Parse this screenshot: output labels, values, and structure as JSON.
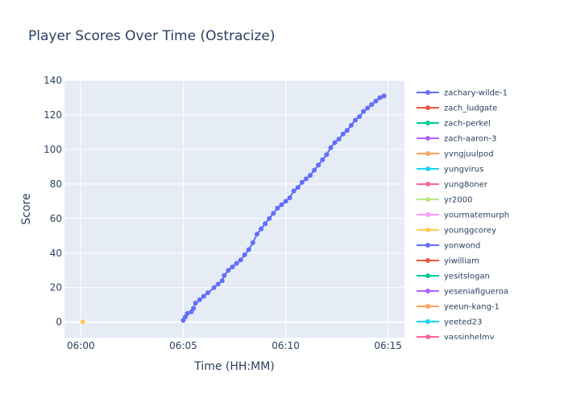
{
  "chart_data": {
    "type": "line",
    "title": "Player Scores Over Time (Ostracize)",
    "xlabel": "Time (HH:MM)",
    "ylabel": "Score",
    "x_ticks": [
      "06:00",
      "06:05",
      "06:10",
      "06:15"
    ],
    "x_tick_minutes": [
      0,
      5,
      10,
      15
    ],
    "xlim_minutes": [
      -0.8,
      15.8
    ],
    "ylim": [
      -9,
      140
    ],
    "y_ticks": [
      0,
      20,
      40,
      60,
      80,
      100,
      120,
      140
    ],
    "grid": true,
    "legend_position": "right",
    "series": [
      {
        "name": "zachary-wilde-1",
        "color": "#636efa",
        "points": [
          [
            5.0,
            1
          ],
          [
            5.1,
            3
          ],
          [
            5.2,
            5
          ],
          [
            5.4,
            6
          ],
          [
            5.5,
            8
          ],
          [
            5.6,
            11
          ],
          [
            5.8,
            13
          ],
          [
            6.0,
            15
          ],
          [
            6.2,
            17
          ],
          [
            6.5,
            20
          ],
          [
            6.7,
            22
          ],
          [
            6.9,
            24
          ],
          [
            7.0,
            27
          ],
          [
            7.2,
            30
          ],
          [
            7.4,
            32
          ],
          [
            7.6,
            34
          ],
          [
            7.8,
            36
          ],
          [
            8.0,
            39
          ],
          [
            8.2,
            42
          ],
          [
            8.4,
            46
          ],
          [
            8.6,
            51
          ],
          [
            8.8,
            54
          ],
          [
            9.0,
            57
          ],
          [
            9.2,
            60
          ],
          [
            9.4,
            63
          ],
          [
            9.6,
            66
          ],
          [
            9.8,
            68
          ],
          [
            10.0,
            70
          ],
          [
            10.2,
            72
          ],
          [
            10.4,
            76
          ],
          [
            10.6,
            78
          ],
          [
            10.8,
            81
          ],
          [
            11.0,
            83
          ],
          [
            11.2,
            85
          ],
          [
            11.4,
            88
          ],
          [
            11.6,
            91
          ],
          [
            11.8,
            94
          ],
          [
            12.0,
            97
          ],
          [
            12.2,
            101
          ],
          [
            12.4,
            104
          ],
          [
            12.6,
            106
          ],
          [
            12.8,
            109
          ],
          [
            13.0,
            111
          ],
          [
            13.2,
            114
          ],
          [
            13.4,
            117
          ],
          [
            13.6,
            119
          ],
          [
            13.8,
            122
          ],
          [
            14.0,
            124
          ],
          [
            14.2,
            126
          ],
          [
            14.4,
            128
          ],
          [
            14.6,
            130
          ],
          [
            14.8,
            131
          ]
        ]
      },
      {
        "name": "zach_ludgate",
        "color": "#ef553b",
        "points": []
      },
      {
        "name": "zach-perkel",
        "color": "#00cc96",
        "points": []
      },
      {
        "name": "zach-aaron-3",
        "color": "#ab63fa",
        "points": []
      },
      {
        "name": "yvngjuulpod",
        "color": "#ffa15a",
        "points": []
      },
      {
        "name": "yungvirus",
        "color": "#19d3f3",
        "points": []
      },
      {
        "name": "yung8oner",
        "color": "#ff6692",
        "points": []
      },
      {
        "name": "yr2000",
        "color": "#b6e880",
        "points": []
      },
      {
        "name": "yourmatemurph",
        "color": "#ff97ff",
        "points": []
      },
      {
        "name": "younggcorey",
        "color": "#fecb52",
        "points": [
          [
            0.1,
            0
          ]
        ]
      },
      {
        "name": "yonwond",
        "color": "#636efa",
        "points": []
      },
      {
        "name": "yiwilliam",
        "color": "#ef553b",
        "points": []
      },
      {
        "name": "yesitslogan",
        "color": "#00cc96",
        "points": []
      },
      {
        "name": "yeseniafigueroa",
        "color": "#ab63fa",
        "points": []
      },
      {
        "name": "yeeun-kang-1",
        "color": "#ffa15a",
        "points": []
      },
      {
        "name": "yeeted23",
        "color": "#19d3f3",
        "points": []
      },
      {
        "name": "yassinhelmy",
        "color": "#ff6692",
        "points": []
      }
    ]
  }
}
